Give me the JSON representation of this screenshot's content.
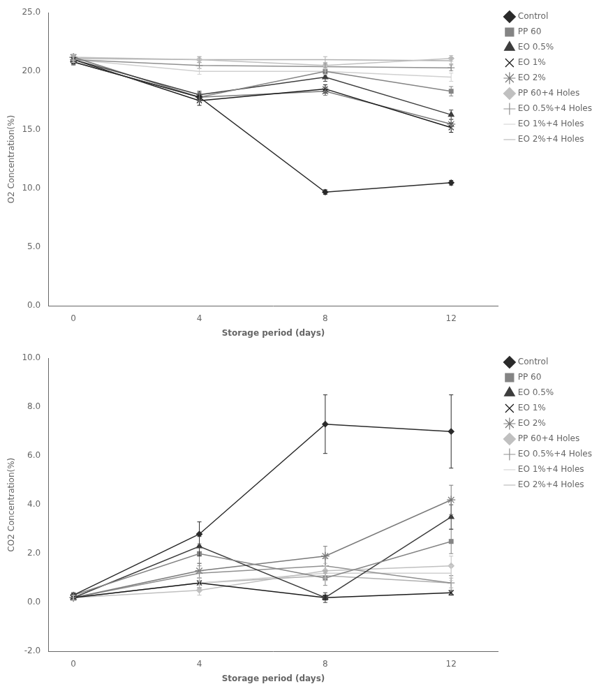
{
  "chart_data": [
    {
      "type": "line",
      "ylabel": "O2 Concentration(%)",
      "xlabel": "Storage period (days)",
      "x": [
        0,
        4,
        8,
        12
      ],
      "xlim": [
        -0.8,
        13.5
      ],
      "xticks": [
        0,
        4,
        8,
        12
      ],
      "ylim": [
        0.0,
        25.0
      ],
      "yticks": [
        {
          "value": 0.0,
          "label": "0.0"
        },
        {
          "value": 5.0,
          "label": "5.0"
        },
        {
          "value": 10.0,
          "label": "10.0"
        },
        {
          "value": 15.0,
          "label": "15.0"
        },
        {
          "value": 20.0,
          "label": "20.0"
        },
        {
          "value": 25.0,
          "label": "25.0"
        }
      ],
      "grid": false,
      "legend": "right",
      "series": [
        {
          "name": "Control",
          "color": "#2a2a2a",
          "marker": "diamond",
          "values": [
            20.8,
            17.8,
            9.7,
            10.5
          ],
          "yerr": [
            0.25,
            0.3,
            0.2,
            0.2
          ]
        },
        {
          "name": "PP 60",
          "color": "#848484",
          "marker": "square",
          "values": [
            20.8,
            17.8,
            20.0,
            18.3
          ],
          "yerr": [
            0.25,
            0.3,
            0.3,
            0.4
          ]
        },
        {
          "name": "EO 0.5%",
          "color": "#3d3d3d",
          "marker": "triangle",
          "values": [
            21.0,
            18.0,
            19.5,
            16.3
          ],
          "yerr": [
            0.25,
            0.3,
            0.35,
            0.4
          ]
        },
        {
          "name": "EO 1%",
          "color": "#1a1a1a",
          "marker": "x",
          "values": [
            21.0,
            17.5,
            18.5,
            15.2
          ],
          "yerr": [
            0.25,
            0.4,
            0.35,
            0.4
          ]
        },
        {
          "name": "EO 2%",
          "color": "#7a7a7a",
          "marker": "star",
          "values": [
            21.2,
            17.8,
            18.3,
            15.5
          ],
          "yerr": [
            0.25,
            0.4,
            0.35,
            0.4
          ]
        },
        {
          "name": "PP 60+4 Holes",
          "color": "#c0c0c0",
          "marker": "diamond",
          "values": [
            21.2,
            21.0,
            20.5,
            21.1
          ],
          "yerr": [
            0.25,
            0.25,
            0.25,
            0.25
          ]
        },
        {
          "name": "EO 0.5%+4 Holes",
          "color": "#909090",
          "marker": "plus",
          "values": [
            21.0,
            20.5,
            20.4,
            20.3
          ],
          "yerr": [
            0.25,
            0.25,
            0.25,
            0.25
          ]
        },
        {
          "name": "EO 1%+4 Holes",
          "color": "#d0d0d0",
          "marker": "none",
          "values": [
            21.0,
            20.0,
            20.0,
            19.5
          ],
          "yerr": [
            0.25,
            0.25,
            0.25,
            0.35
          ]
        },
        {
          "name": "EO 2%+4 Holes",
          "color": "#b0b0b0",
          "marker": "none",
          "values": [
            21.1,
            21.0,
            21.0,
            20.9
          ],
          "yerr": [
            0.25,
            0.25,
            0.25,
            0.25
          ]
        }
      ]
    },
    {
      "type": "line",
      "ylabel": "CO2 Concentration(%)",
      "xlabel": "Storage period (days)",
      "x": [
        0,
        4,
        8,
        12
      ],
      "xlim": [
        -0.8,
        13.5
      ],
      "xticks": [
        0,
        4,
        8,
        12
      ],
      "ylim": [
        -2.0,
        10.0
      ],
      "yticks": [
        {
          "value": -2.0,
          "label": "-2.0"
        },
        {
          "value": 0.0,
          "label": "0.0"
        },
        {
          "value": 2.0,
          "label": "2.0"
        },
        {
          "value": 4.0,
          "label": "4.0"
        },
        {
          "value": 6.0,
          "label": "6.0"
        },
        {
          "value": 8.0,
          "label": "8.0"
        },
        {
          "value": 10.0,
          "label": "10.0"
        }
      ],
      "grid": false,
      "legend": "right",
      "series": [
        {
          "name": "Control",
          "color": "#2a2a2a",
          "marker": "diamond",
          "values": [
            0.3,
            2.8,
            7.3,
            7.0
          ],
          "yerr": [
            0.1,
            0.5,
            1.2,
            1.5
          ]
        },
        {
          "name": "PP 60",
          "color": "#848484",
          "marker": "square",
          "values": [
            0.3,
            2.0,
            1.0,
            2.5
          ],
          "yerr": [
            0.1,
            0.4,
            0.3,
            0.5
          ]
        },
        {
          "name": "EO 0.5%",
          "color": "#3d3d3d",
          "marker": "triangle",
          "values": [
            0.2,
            2.3,
            0.2,
            3.5
          ],
          "yerr": [
            0.1,
            0.4,
            0.2,
            0.5
          ]
        },
        {
          "name": "EO 1%",
          "color": "#1a1a1a",
          "marker": "x",
          "values": [
            0.2,
            0.8,
            0.2,
            0.4
          ],
          "yerr": [
            0.1,
            0.2,
            0.1,
            0.1
          ]
        },
        {
          "name": "EO 2%",
          "color": "#7a7a7a",
          "marker": "star",
          "values": [
            0.2,
            1.3,
            1.9,
            4.2
          ],
          "yerr": [
            0.1,
            0.3,
            0.4,
            0.6
          ]
        },
        {
          "name": "PP 60+4 Holes",
          "color": "#c0c0c0",
          "marker": "diamond",
          "values": [
            0.2,
            0.5,
            1.3,
            1.5
          ],
          "yerr": [
            0.1,
            0.2,
            0.3,
            0.4
          ]
        },
        {
          "name": "EO 0.5%+4 Holes",
          "color": "#909090",
          "marker": "plus",
          "values": [
            0.2,
            1.2,
            1.5,
            0.8
          ],
          "yerr": [
            0.1,
            0.3,
            0.3,
            0.3
          ]
        },
        {
          "name": "EO 1%+4 Holes",
          "color": "#d0d0d0",
          "marker": "none",
          "values": [
            0.2,
            0.8,
            1.2,
            1.2
          ],
          "yerr": [
            0.1,
            0.2,
            0.3,
            0.3
          ]
        },
        {
          "name": "EO 2%+4 Holes",
          "color": "#b0b0b0",
          "marker": "none",
          "values": [
            0.2,
            0.8,
            1.1,
            0.8
          ],
          "yerr": [
            0.1,
            0.2,
            0.2,
            0.2
          ]
        }
      ]
    }
  ]
}
